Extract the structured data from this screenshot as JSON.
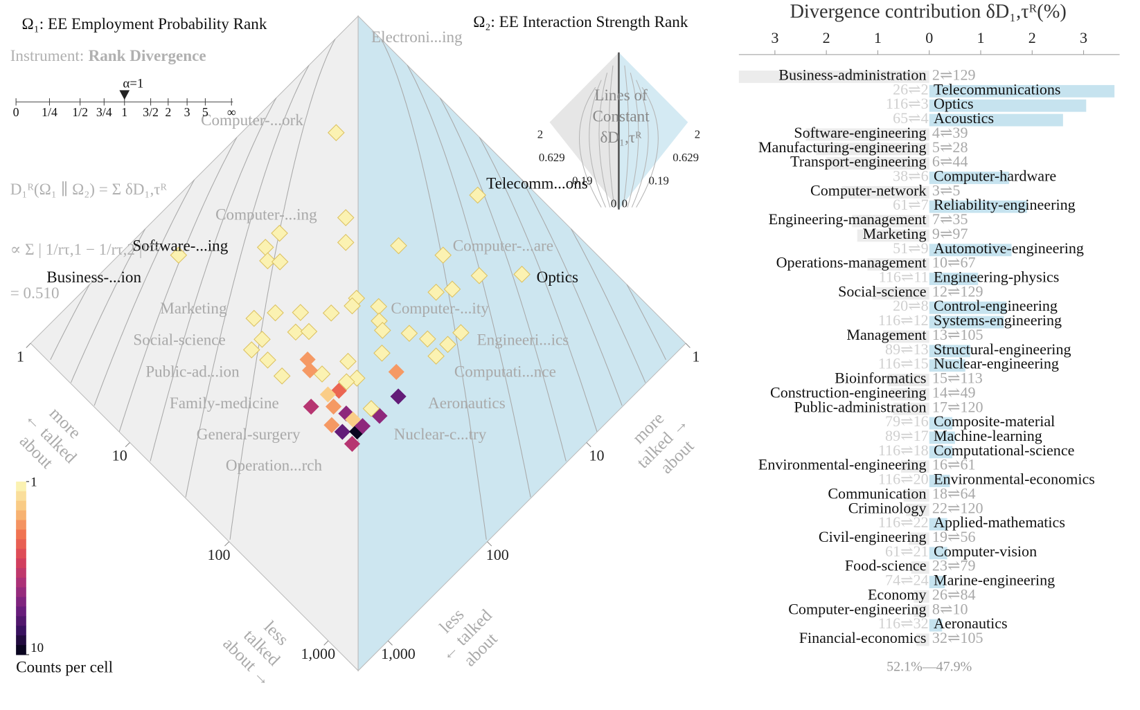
{
  "chart_data": [
    {
      "type": "allotaxonograph",
      "title_left": "Ω₁: EE Employment Probability Rank",
      "title_right": "Ω₂: EE Interaction Strength Rank",
      "instrument_label": "Instrument:",
      "instrument": "Rank Divergence",
      "alpha_label": "α=1",
      "alpha_ticks": [
        "0",
        "1/4",
        "1/2",
        "3/4",
        "1",
        "3/2",
        "2",
        "3",
        "5",
        "∞"
      ],
      "formula": [
        "D₁ᴿ(Ω₁ ∥ Ω₂) = Σ δD₁,τᴿ",
        "∝ Σ | 1/rτ,1 − 1/rτ,2 |¹ᐟ²",
        "= 0.510"
      ],
      "xlim": [
        1,
        2000
      ],
      "ylim": [
        1,
        2000
      ],
      "xticks": [
        1,
        10,
        100,
        {
          "value": 1000,
          "label": "1,000"
        }
      ],
      "yticks": [
        1,
        10,
        100,
        {
          "value": 1000,
          "label": "1,000"
        }
      ],
      "log_scale": true,
      "colors": {
        "left": "#efefef",
        "right": "#cde6f0"
      },
      "item_labels": [
        "Electroni...ing",
        "Computer-...ork",
        "Computer-...ing",
        "Software-...ing",
        "Business-...ion",
        "Marketing",
        "Social-science",
        "Public-ad...ion",
        "Family-medicine",
        "General-surgery",
        "Operation...rch",
        "Telecomm...ons",
        "Computer-...are",
        "Optics",
        "Computer-...ity",
        "Engineeri...ics",
        "Computati...nce",
        "Aeronautics",
        "Nuclear-c...try"
      ],
      "edge_labels": {
        "left": [
          "more",
          "← talked",
          "about"
        ],
        "right": [
          "more",
          "talked →",
          "about"
        ],
        "bottom_left": [
          "less",
          "talked",
          "about →"
        ],
        "bottom_right": [
          "less",
          "← talked",
          "about"
        ]
      },
      "inset": {
        "title": [
          "Lines of",
          "Constant",
          "δD₁,τᴿ"
        ],
        "ticks": [
          2,
          0.629,
          0.19,
          0
        ]
      },
      "cells": {
        "x": [
          3,
          9,
          12,
          5,
          5,
          6,
          7,
          2,
          10,
          12,
          16,
          23,
          26,
          27,
          19,
          22,
          14,
          14,
          19,
          27,
          42,
          35,
          49,
          66,
          62,
          57,
          54,
          70,
          88,
          85,
          102,
          104,
          123,
          134,
          123,
          97,
          132,
          133,
          111,
          32,
          23,
          43,
          83,
          134,
          61,
          71,
          37,
          44,
          72,
          95,
          130,
          128,
          128,
          66,
          51,
          30,
          61
        ],
        "y": [
          5,
          12,
          16,
          31,
          43,
          49,
          43,
          129,
          112,
          82,
          61,
          43,
          27,
          31,
          81,
          69,
          130,
          166,
          155,
          158,
          97,
          107,
          62,
          68,
          97,
          115,
          161,
          124,
          116,
          157,
          115,
          150,
          126,
          154,
          111,
          40,
          52,
          81,
          82,
          2,
          9,
          6,
          5,
          3,
          10,
          8,
          23,
          27,
          22,
          19,
          12,
          16,
          21,
          38,
          29,
          97,
          80
        ],
        "counts": [
          1,
          1,
          1,
          1,
          1,
          1,
          1,
          1,
          1,
          1,
          1,
          1,
          1,
          1,
          1,
          1,
          1,
          1,
          1,
          1,
          1,
          3,
          1,
          1,
          4,
          2,
          6,
          3,
          7,
          3,
          2,
          8,
          10,
          6,
          7,
          3,
          8,
          7,
          1,
          1,
          1,
          1,
          1,
          1,
          1,
          1,
          1,
          1,
          1,
          1,
          1,
          1,
          1,
          1,
          1,
          3,
          1
        ]
      },
      "colorbar": {
        "title": "Counts per cell",
        "clim": [
          1,
          10
        ],
        "ticks": [
          1,
          10
        ]
      }
    },
    {
      "type": "bar",
      "orientation": "horizontal",
      "title": "Divergence contribution δD₁,τᴿ(%)",
      "xlim": [
        -3.7,
        3.7
      ],
      "xticks": [
        {
          "value": -3,
          "label": "3"
        },
        {
          "value": -2,
          "label": "2"
        },
        {
          "value": -1,
          "label": "1"
        },
        0,
        1,
        2,
        3
      ],
      "categories": [
        "Business-administration",
        "Telecommunications",
        "Optics",
        "Acoustics",
        "Software-engineering",
        "Manufacturing-engineering",
        "Transport-engineering",
        "Computer-hardware",
        "Computer-network",
        "Reliability-engineering",
        "Engineering-management",
        "Marketing",
        "Automotive-engineering",
        "Operations-management",
        "Engineering-physics",
        "Social-science",
        "Control-engineering",
        "Systems-engineering",
        "Management",
        "Structural-engineering",
        "Nuclear-engineering",
        "Bioinformatics",
        "Construction-engineering",
        "Public-administration",
        "Composite-material",
        "Machine-learning",
        "Computational-science",
        "Environmental-engineering",
        "Environmental-economics",
        "Communication",
        "Criminology",
        "Applied-mathematics",
        "Civil-engineering",
        "Computer-vision",
        "Food-science",
        "Marine-engineering",
        "Economy",
        "Computer-engineering",
        "Aeronautics",
        "Financial-economics"
      ],
      "values": [
        -3.7,
        3.6,
        3.05,
        2.6,
        -2.4,
        -2.2,
        -2.0,
        1.55,
        -1.7,
        1.9,
        -1.5,
        -1.4,
        1.6,
        -1.2,
        0.95,
        -1.1,
        1.5,
        1.45,
        -0.9,
        0.8,
        0.7,
        -0.8,
        -0.75,
        -0.7,
        0.45,
        0.5,
        0.45,
        -0.55,
        0.4,
        -0.5,
        -0.45,
        0.35,
        -0.4,
        0.35,
        -0.35,
        0.3,
        -0.3,
        -0.3,
        0.25,
        -0.25
      ],
      "rank_pairs": [
        "2⇌129",
        "26⇌2",
        "116⇌3",
        "65⇌4",
        "4⇌39",
        "5⇌28",
        "6⇌44",
        "38⇌6",
        "3⇌5",
        "61⇌7",
        "7⇌35",
        "9⇌97",
        "51⇌9",
        "10⇌67",
        "116⇌11",
        "12⇌129",
        "20⇌8",
        "116⇌12",
        "13⇌105",
        "89⇌13",
        "116⇌15",
        "15⇌113",
        "14⇌49",
        "17⇌120",
        "79⇌16",
        "89⇌17",
        "116⇌18",
        "16⇌61",
        "116⇌20",
        "18⇌64",
        "22⇌120",
        "116⇌22",
        "19⇌56",
        "61⇌21",
        "23⇌79",
        "74⇌24",
        "26⇌84",
        "8⇌10",
        "116⇌32",
        "32⇌105"
      ],
      "colors": {
        "left": "#ececec",
        "right": "#c6e3ef"
      },
      "balance": "52.1%—47.9%"
    }
  ]
}
